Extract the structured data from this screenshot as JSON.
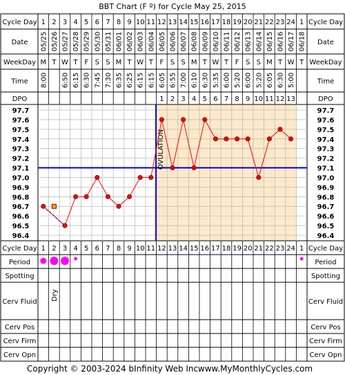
{
  "title": "BBT Chart (F º) for Cycle May 25, 2015",
  "footer": {
    "copyright": "Copyright © 2003-2024 bInfinity Web Inc.",
    "site": "www.MyMonthlyCycles.com"
  },
  "row_labels": {
    "cycle_day": "Cycle Day",
    "date": "Date",
    "weekday": "WeekDay",
    "time": "Time",
    "dpo": "DPO",
    "period": "Period",
    "spotting": "Spotting",
    "cerv_fluid": "Cerv Fluid",
    "cerv_pos": "Cerv Pos",
    "cerv_firm": "Cerv Firm",
    "cerv_opn": "Cerv Opn"
  },
  "columns": {
    "cycle_day": [
      "1",
      "2",
      "3",
      "4",
      "5",
      "6",
      "7",
      "8",
      "9",
      "10",
      "11",
      "12",
      "13",
      "14",
      "15",
      "16",
      "17",
      "18",
      "19",
      "20",
      "21",
      "22",
      "23",
      "24",
      "1"
    ],
    "dates": [
      "05/25",
      "05/26",
      "05/27",
      "05/28",
      "05/29",
      "05/30",
      "05/31",
      "06/01",
      "06/02",
      "06/03",
      "06/04",
      "06/05",
      "06/06",
      "06/07",
      "06/08",
      "06/09",
      "06/10",
      "06/11",
      "06/12",
      "06/13",
      "06/14",
      "06/15",
      "06/16",
      "06/17",
      "06/18"
    ],
    "weekdays": [
      "M",
      "T",
      "W",
      "T",
      "F",
      "S",
      "S",
      "M",
      "T",
      "W",
      "T",
      "F",
      "S",
      "S",
      "M",
      "T",
      "W",
      "T",
      "F",
      "S",
      "S",
      "M",
      "T",
      "W",
      "T"
    ],
    "times": [
      "8:00",
      "",
      "6:50",
      "6:15",
      "6:30",
      "7:45",
      "7:30",
      "6:35",
      "6:25",
      "6:15",
      "6:15",
      "6:05",
      "6:55",
      "7:00",
      "6:10",
      "6:30",
      "5:35",
      "6:00",
      "5:20",
      "6:00",
      "5:20",
      "6:05",
      "6:30",
      "5:00",
      ""
    ],
    "dpo": [
      "",
      "",
      "",
      "",
      "",
      "",
      "",
      "",
      "",
      "",
      "",
      "1",
      "2",
      "3",
      "4",
      "5",
      "6",
      "7",
      "8",
      "9",
      "10",
      "11",
      "12",
      "13",
      ""
    ],
    "period": [
      "small",
      "large",
      "large",
      "tiny",
      "",
      "",
      "",
      "",
      "",
      "",
      "",
      "",
      "",
      "",
      "",
      "",
      "",
      "",
      "",
      "",
      "",
      "",
      "",
      "",
      "tiny"
    ],
    "cerv_fluid": [
      "",
      "Dry",
      "",
      "",
      "",
      "",
      "",
      "",
      "",
      "",
      "",
      "",
      "",
      "",
      "",
      "",
      "",
      "",
      "",
      "",
      "",
      "",
      "",
      "",
      ""
    ]
  },
  "temp_scale": [
    "97.7",
    "97.6",
    "97.5",
    "97.4",
    "97.3",
    "97.2",
    "97.1",
    "97.0",
    "96.9",
    "96.8",
    "96.7",
    "96.6",
    "96.5",
    "96.4"
  ],
  "chart_data": {
    "type": "line",
    "title": "BBT Chart (F º) for Cycle May 25, 2015",
    "x_label": "Cycle Day",
    "y_label": "",
    "ylim": [
      96.4,
      97.7
    ],
    "coverline": 97.1,
    "ovulation_day": 11,
    "ovulation_label": "OVULATION",
    "series": [
      {
        "values": [
          96.7,
          null,
          96.5,
          96.8,
          96.8,
          97.0,
          96.8,
          96.7,
          96.8,
          97.0,
          97.0,
          97.6,
          97.1,
          97.6,
          97.1,
          97.6,
          97.4,
          97.4,
          97.4,
          97.4,
          97.0,
          97.4,
          97.5,
          97.4,
          null
        ],
        "markers": [
          "circle",
          "square",
          "circle",
          "circle",
          "circle",
          "circle",
          "circle",
          "circle",
          "circle",
          "circle",
          "circle",
          "circle",
          "circle",
          "circle",
          "circle",
          "circle",
          "circle",
          "circle",
          "circle",
          "circle",
          "circle",
          "circle",
          "circle",
          "circle",
          ""
        ]
      }
    ],
    "extra_points": [
      {
        "day": 2,
        "value": 96.7,
        "marker": "square"
      }
    ],
    "colors": {
      "line": "#ff0000",
      "point_fill": "#ff0000",
      "point_stroke": "#800000",
      "coverline": "#0000cc",
      "ovulation": "#0000cc",
      "luteal_bg": "#fde9c9",
      "period": "#ff00ff",
      "square_fill": "#ffa500"
    }
  }
}
